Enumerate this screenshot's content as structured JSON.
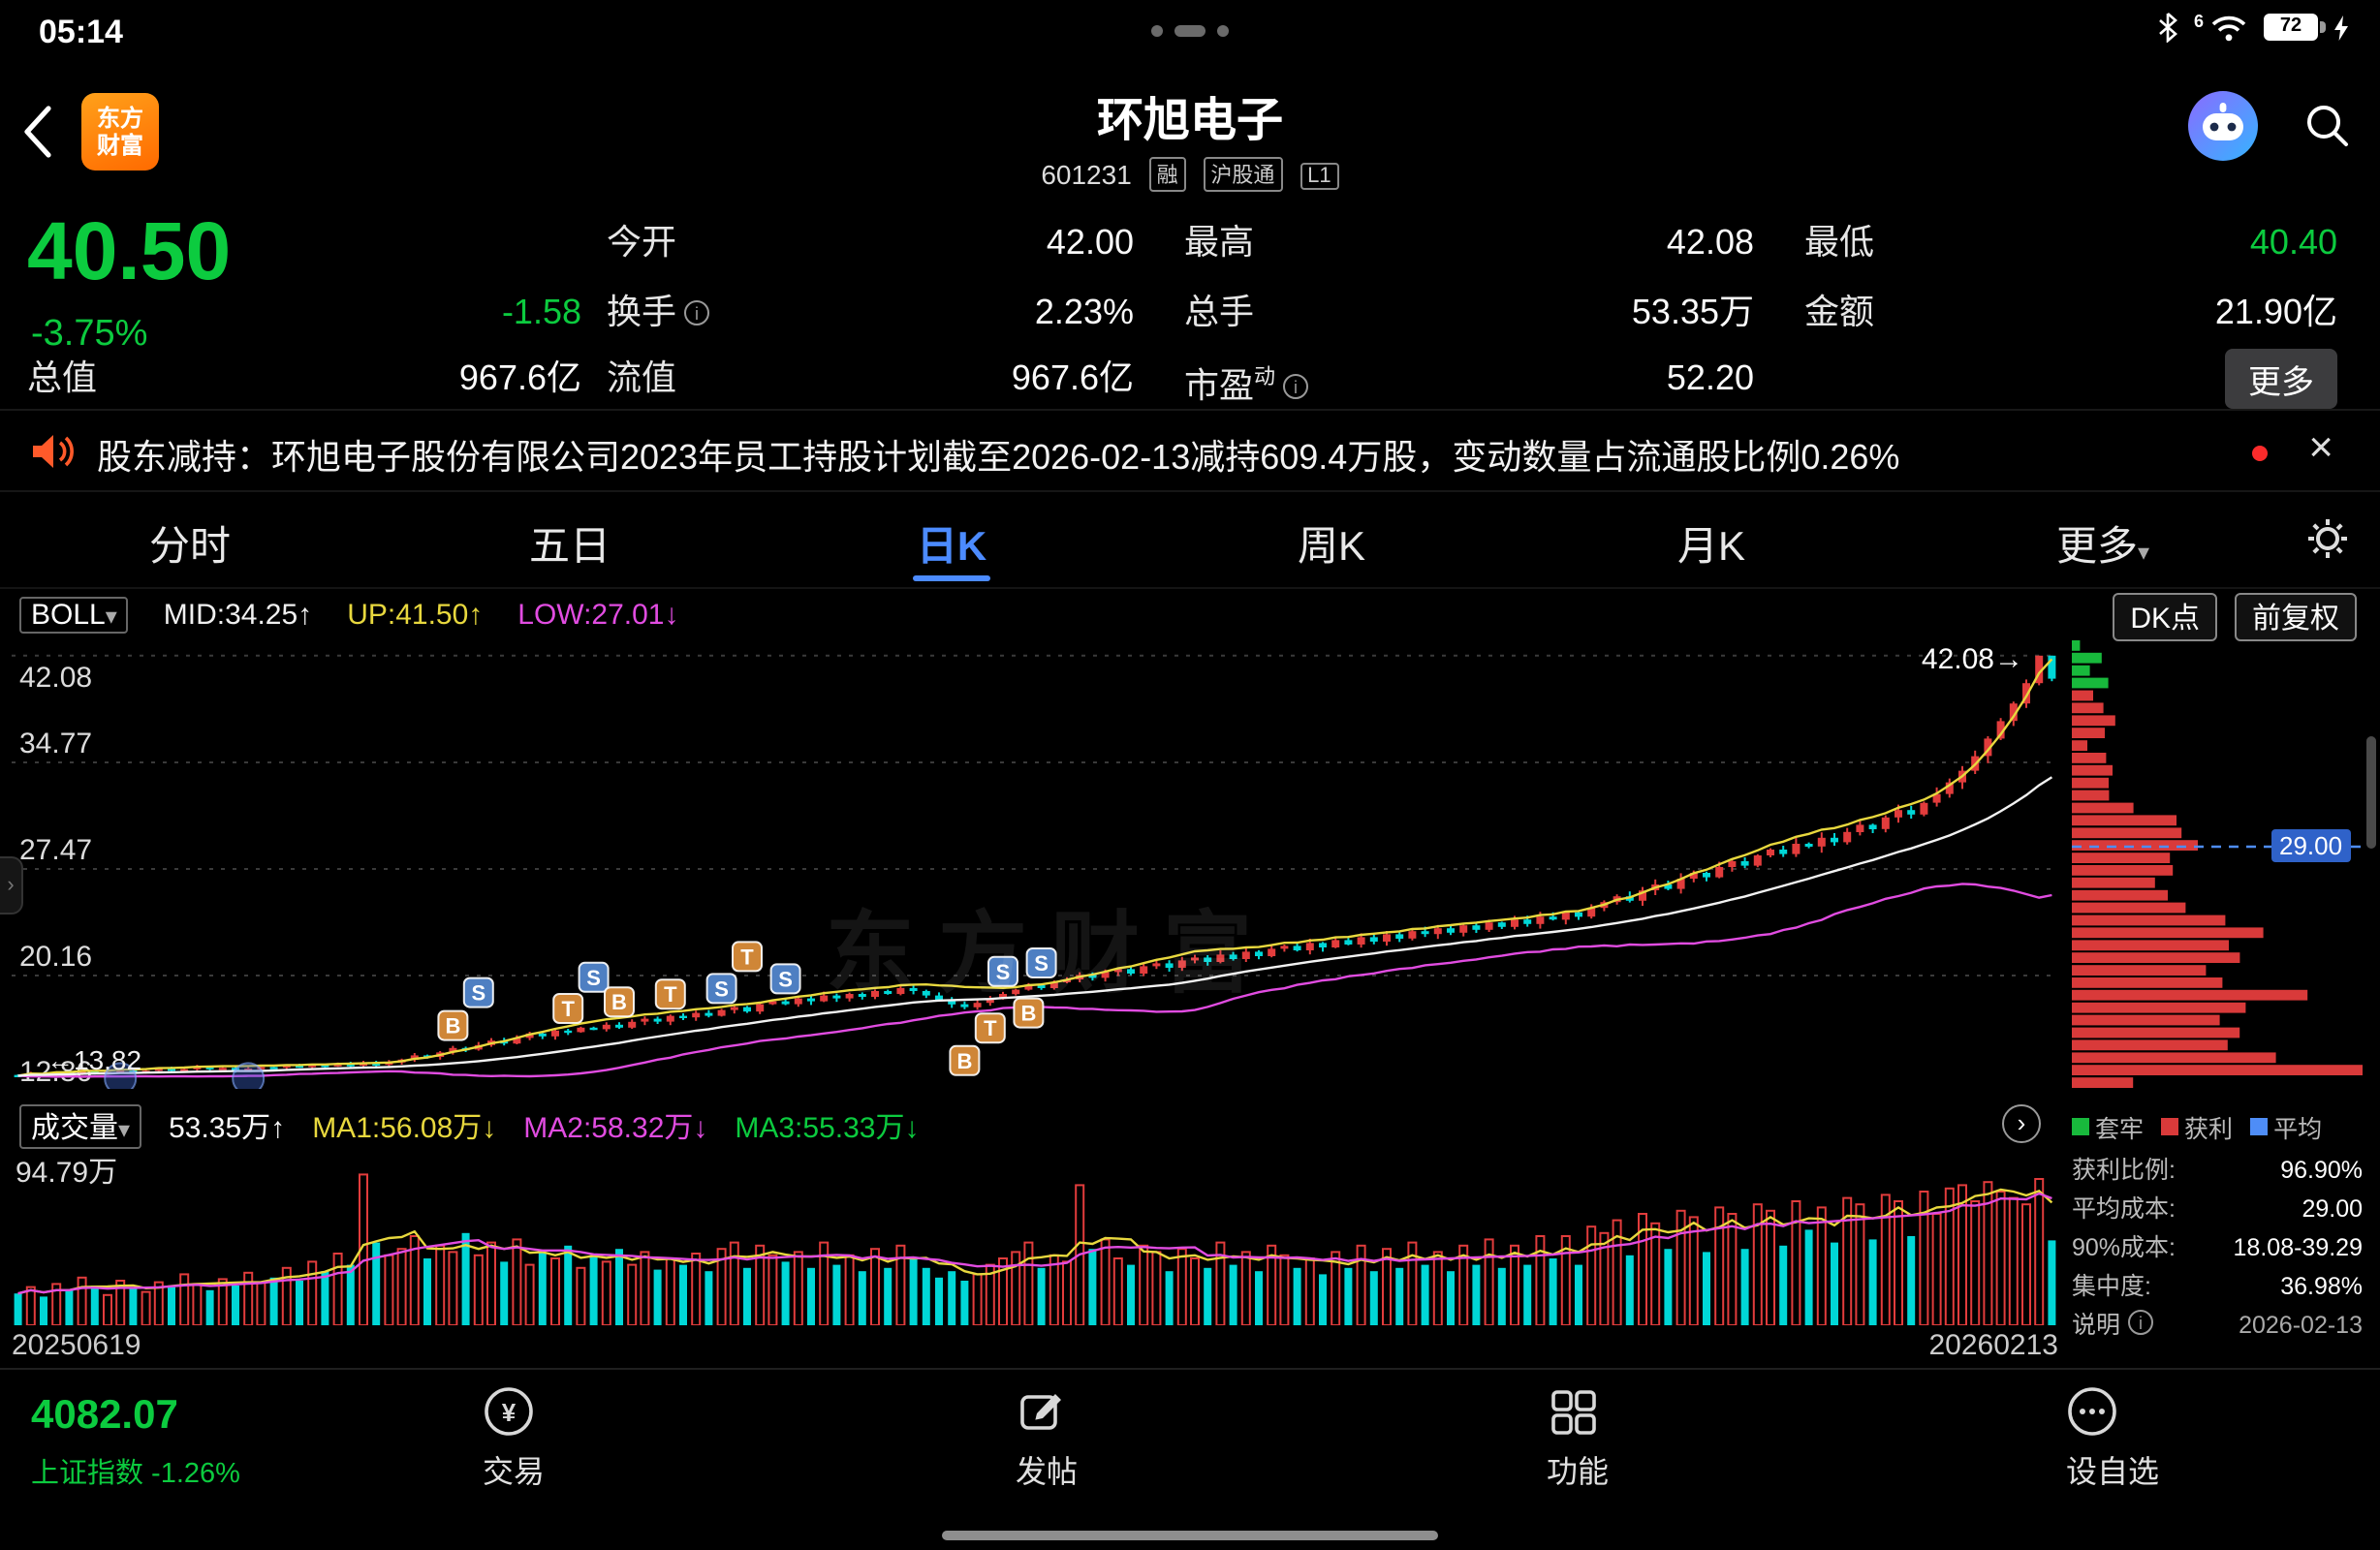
{
  "status_bar": {
    "time": "05:14",
    "battery": "72",
    "wifi_gen": "6"
  },
  "header": {
    "logo_line1": "东方",
    "logo_line2": "财富",
    "title": "环旭电子",
    "code": "601231",
    "tags": [
      "融",
      "沪股通",
      "L1"
    ]
  },
  "quote": {
    "price": "40.50",
    "change_pct": "-3.75%",
    "change": "-1.58",
    "open_label": "今开",
    "open": "42.00",
    "high_label": "最高",
    "high": "42.08",
    "low_label": "最低",
    "low": "40.40",
    "turnover_label": "换手",
    "turnover": "2.23%",
    "volume_label": "总手",
    "volume": "53.35万",
    "amount_label": "金额",
    "amount": "21.90亿",
    "mktcap_label": "总值",
    "mktcap": "967.6亿",
    "float_label": "流值",
    "float_value": "967.6亿",
    "pe_label": "市盈",
    "pe_sub": "动",
    "pe": "52.20",
    "more_label": "更多"
  },
  "news": {
    "text": "股东减持：环旭电子股份有限公司2023年员工持股计划截至2026-02-13减持609.4万股，变动数量占流通股比例0.26%"
  },
  "tabs": {
    "items": [
      "分时",
      "五日",
      "日K",
      "周K",
      "月K"
    ],
    "active_index": 2,
    "more_label": "更多"
  },
  "kline_header": {
    "indicator": "BOLL",
    "mid": "MID:34.25↑",
    "up": "UP:41.50↑",
    "low": "LOW:27.01↓",
    "dk_label": "DK点",
    "fq_label": "前复权"
  },
  "volume_header": {
    "name": "成交量",
    "current": "53.35万↑",
    "ma1": "MA1:56.08万↓",
    "ma2": "MA2:58.32万↓",
    "ma3": "MA3:55.33万↓",
    "max_label": "94.79万"
  },
  "dates": {
    "start": "20250619",
    "end": "20260213"
  },
  "overlays": {
    "high_label": "42.08→",
    "ref_label": "←13.82",
    "watermark": "东方财富",
    "avg_badge": "29.00"
  },
  "side_panel": {
    "legend": [
      {
        "label": "套牢",
        "color": "#18b93c"
      },
      {
        "label": "获利",
        "color": "#d93a3a"
      },
      {
        "label": "平均",
        "color": "#4e8df7"
      }
    ],
    "rows": [
      {
        "label": "获利比例:",
        "value": "96.90%"
      },
      {
        "label": "平均成本:",
        "value": "29.00"
      },
      {
        "label": "90%成本:",
        "value": "18.08-39.29"
      },
      {
        "label": "集中度:",
        "value": "36.98%"
      }
    ],
    "note_label": "说明",
    "note_value": "2026-02-13"
  },
  "bottom_nav": {
    "index_value": "4082.07",
    "index_label": "上证指数 -1.26%",
    "items": [
      {
        "label": "交易"
      },
      {
        "label": "发帖"
      },
      {
        "label": "功能"
      },
      {
        "label": "设自选"
      }
    ]
  },
  "chart_data": {
    "type": "candlestick",
    "symbol": "环旭电子 601231",
    "period": "日K",
    "x_range": [
      "20250619",
      "20260213"
    ],
    "y_ticks": [
      42.08,
      34.77,
      27.47,
      20.16,
      12.86
    ],
    "price_min": 12.4,
    "price_max": 43.2,
    "boll": {
      "mid": 34.25,
      "up": 41.5,
      "low": 27.01
    },
    "last_candle": {
      "open": 42.0,
      "high": 42.08,
      "low": 40.4,
      "close": 40.5,
      "change_pct": -3.75
    },
    "volume_stats": {
      "current_wan": 53.35,
      "ma1_wan": 56.08,
      "ma2_wan": 58.32,
      "ma3_wan": 55.33,
      "max_wan": 94.79
    },
    "avg_cost": 29.0,
    "closes": [
      13.3,
      13.4,
      13.35,
      13.5,
      13.45,
      13.6,
      13.5,
      13.55,
      13.7,
      13.6,
      13.65,
      13.8,
      13.7,
      13.75,
      13.9,
      13.8,
      13.85,
      13.7,
      13.8,
      13.9,
      13.85,
      14.0,
      13.9,
      14.05,
      13.95,
      14.1,
      14.0,
      14.15,
      14.05,
      14.2,
      14.4,
      14.7,
      14.6,
      14.9,
      15.2,
      15.1,
      15.4,
      15.7,
      15.5,
      15.9,
      16.2,
      16.0,
      16.4,
      16.3,
      16.6,
      16.5,
      16.8,
      16.6,
      17.0,
      17.2,
      17.0,
      17.4,
      17.3,
      17.6,
      17.4,
      17.8,
      18.0,
      17.7,
      18.2,
      18.4,
      18.2,
      18.6,
      18.4,
      18.8,
      18.6,
      18.9,
      18.7,
      19.1,
      18.9,
      19.3,
      19.1,
      18.8,
      18.5,
      18.2,
      18.0,
      18.3,
      18.6,
      18.9,
      19.2,
      19.5,
      19.3,
      19.7,
      19.9,
      20.2,
      20.0,
      20.4,
      20.6,
      20.3,
      20.8,
      21.0,
      20.7,
      21.2,
      21.4,
      21.1,
      21.6,
      21.3,
      21.8,
      21.5,
      22.0,
      22.2,
      21.9,
      22.4,
      22.1,
      22.6,
      22.3,
      22.8,
      22.5,
      23.0,
      22.7,
      23.2,
      23.0,
      23.4,
      23.1,
      23.6,
      23.3,
      23.8,
      23.5,
      24.0,
      23.7,
      24.2,
      24.0,
      24.5,
      24.2,
      24.8,
      25.2,
      25.6,
      25.3,
      26.0,
      26.4,
      26.1,
      26.8,
      27.2,
      26.9,
      27.6,
      28.0,
      27.7,
      28.4,
      28.8,
      28.5,
      29.2,
      29.0,
      29.6,
      29.3,
      30.0,
      30.5,
      30.2,
      31.0,
      31.5,
      31.2,
      32.0,
      32.6,
      33.4,
      34.2,
      35.2,
      36.4,
      37.6,
      38.8,
      40.2,
      42.08,
      40.5
    ],
    "volumes_wan": [
      20,
      24,
      18,
      26,
      22,
      30,
      25,
      19,
      28,
      23,
      21,
      27,
      24,
      32,
      26,
      22,
      29,
      25,
      33,
      27,
      30,
      36,
      28,
      40,
      34,
      45,
      38,
      94.79,
      52,
      44,
      48,
      56,
      42,
      50,
      46,
      58,
      44,
      52,
      40,
      54,
      38,
      46,
      42,
      50,
      36,
      44,
      40,
      48,
      38,
      46,
      35,
      42,
      38,
      45,
      34,
      48,
      52,
      36,
      50,
      44,
      40,
      46,
      36,
      52,
      38,
      44,
      34,
      48,
      36,
      50,
      42,
      36,
      30,
      34,
      28,
      32,
      38,
      42,
      46,
      52,
      36,
      44,
      40,
      88,
      48,
      54,
      42,
      38,
      50,
      46,
      34,
      48,
      42,
      36,
      52,
      38,
      46,
      34,
      50,
      44,
      36,
      42,
      32,
      46,
      36,
      50,
      34,
      48,
      36,
      52,
      38,
      46,
      34,
      50,
      38,
      54,
      36,
      50,
      38,
      56,
      42,
      56,
      38,
      62,
      58,
      66,
      44,
      70,
      64,
      48,
      72,
      68,
      46,
      74,
      70,
      48,
      76,
      72,
      50,
      78,
      60,
      74,
      52,
      80,
      76,
      54,
      82,
      78,
      56,
      84,
      70,
      86,
      88,
      78,
      90,
      84,
      80,
      76,
      92,
      53.35
    ],
    "markers": [
      {
        "i": 34,
        "t": "B",
        "side": "up"
      },
      {
        "i": 36,
        "t": "S",
        "side": "up"
      },
      {
        "i": 43,
        "t": "T",
        "side": "up"
      },
      {
        "i": 45,
        "t": "S",
        "side": "up"
      },
      {
        "i": 47,
        "t": "B",
        "side": "up"
      },
      {
        "i": 51,
        "t": "T",
        "side": "up"
      },
      {
        "i": 55,
        "t": "S",
        "side": "up"
      },
      {
        "i": 57,
        "t": "T",
        "side": "up"
      },
      {
        "i": 60,
        "t": "S",
        "side": "up"
      },
      {
        "i": 77,
        "t": "S",
        "side": "up"
      },
      {
        "i": 80,
        "t": "S",
        "side": "up"
      },
      {
        "i": 74,
        "t": "B",
        "side": "down"
      },
      {
        "i": 76,
        "t": "T",
        "side": "down"
      },
      {
        "i": 79,
        "t": "B",
        "side": "down"
      }
    ],
    "event_dot_indices": [
      8,
      18
    ],
    "colors": {
      "up": "#e23c3c",
      "down": "#00d7d7",
      "boll_mid": "#f2f2f2",
      "boll_up": "#e8d83e",
      "boll_low": "#e14ce1",
      "vol_ma_fast": "#e8d83e",
      "vol_ma_slow": "#e14ce1",
      "profile_profit": "#d93a3a",
      "profile_trapped": "#18b93c",
      "avg_cost_line": "#4e8df7",
      "grid": "#3a3a3a"
    },
    "profile": {
      "bins": 36,
      "profit_threshold": 40.2
    }
  }
}
